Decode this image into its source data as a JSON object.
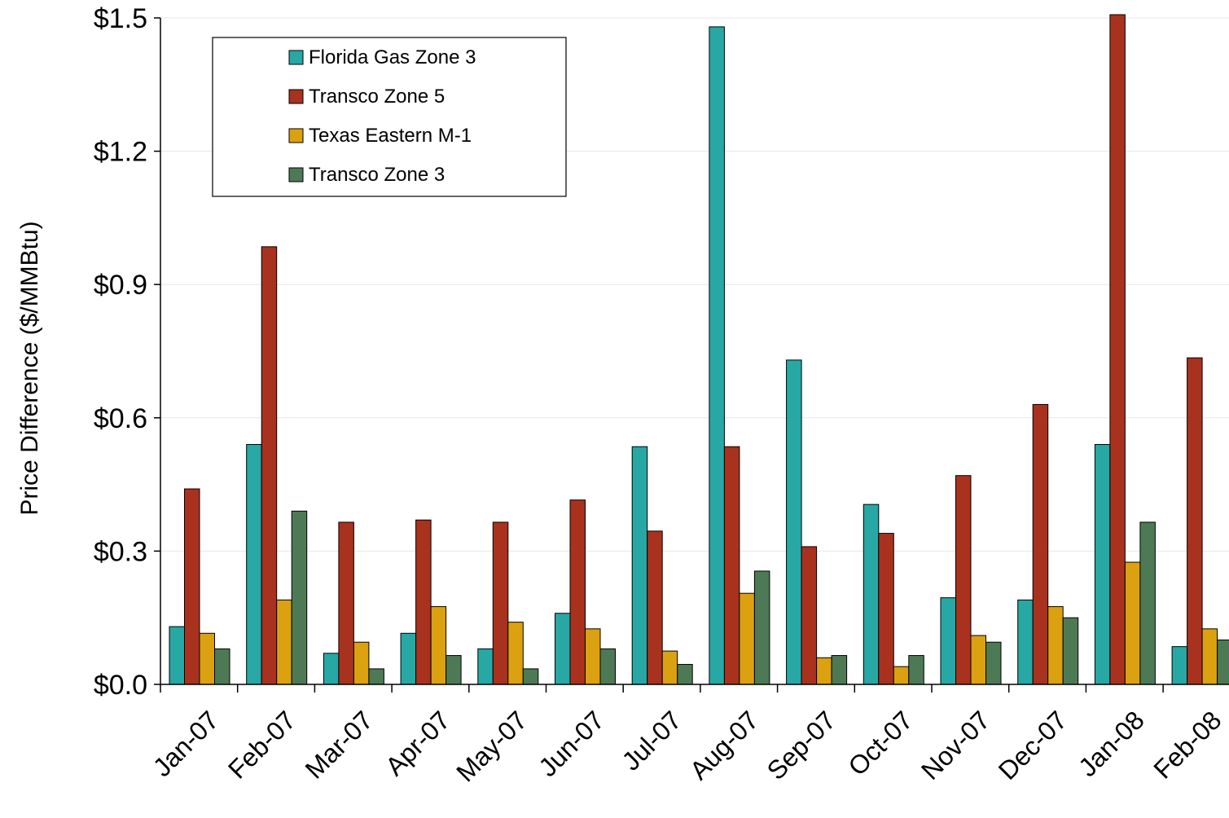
{
  "chart_data": {
    "type": "bar",
    "title": "",
    "xlabel": "",
    "ylabel": "Price Difference  ($/MMBtu)",
    "ylim": [
      0,
      1.5
    ],
    "yticks": [
      "$0.0",
      "$0.3",
      "$0.6",
      "$0.9",
      "$1.2",
      "$1.5"
    ],
    "grid": true,
    "legend_position": "top-left",
    "categories": [
      "Jan-07",
      "Feb-07",
      "Mar-07",
      "Apr-07",
      "May-07",
      "Jun-07",
      "Jul-07",
      "Aug-07",
      "Sep-07",
      "Oct-07",
      "Nov-07",
      "Dec-07",
      "Jan-08",
      "Feb-08"
    ],
    "series": [
      {
        "name": "Florida Gas Zone 3",
        "color": "#27A8A5",
        "values": [
          0.13,
          0.54,
          0.07,
          0.115,
          0.08,
          0.16,
          0.535,
          1.48,
          0.73,
          0.405,
          0.195,
          0.19,
          0.54,
          0.085
        ]
      },
      {
        "name": "Transco Zone 5",
        "color": "#A8321E",
        "values": [
          0.44,
          0.985,
          0.365,
          0.37,
          0.365,
          0.415,
          0.345,
          0.535,
          0.31,
          0.34,
          0.47,
          0.63,
          1.51,
          0.735
        ]
      },
      {
        "name": "Texas Eastern M-1",
        "color": "#DBA111",
        "values": [
          0.115,
          0.19,
          0.095,
          0.175,
          0.14,
          0.125,
          0.075,
          0.205,
          0.06,
          0.04,
          0.11,
          0.175,
          0.275,
          0.125
        ]
      },
      {
        "name": "Transco Zone 3",
        "color": "#4D7A55",
        "values": [
          0.08,
          0.39,
          0.035,
          0.065,
          0.035,
          0.08,
          0.045,
          0.255,
          0.065,
          0.065,
          0.095,
          0.15,
          0.365,
          0.1
        ]
      }
    ]
  }
}
